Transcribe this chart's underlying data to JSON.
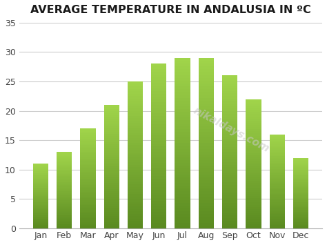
{
  "title": "AVERAGE TEMPERATURE IN ANDALUSIA IN ºC",
  "categories": [
    "Jan",
    "Feb",
    "Mar",
    "Apr",
    "May",
    "Jun",
    "Jul",
    "Aug",
    "Sep",
    "Oct",
    "Nov",
    "Dec"
  ],
  "values": [
    11,
    13,
    17,
    21,
    25,
    28,
    29,
    29,
    26,
    22,
    16,
    12
  ],
  "bar_color": "#8dc63f",
  "bar_edge_color": "#6b9c2a",
  "ylim": [
    0,
    35
  ],
  "yticks": [
    0,
    5,
    10,
    15,
    20,
    25,
    30,
    35
  ],
  "background_color": "#ffffff",
  "title_fontsize": 11.5,
  "tick_fontsize": 9,
  "grid_color": "#cccccc",
  "watermark_text": "nikaldays.com",
  "watermark_color": "#c8c8c8",
  "bar_width": 0.65
}
